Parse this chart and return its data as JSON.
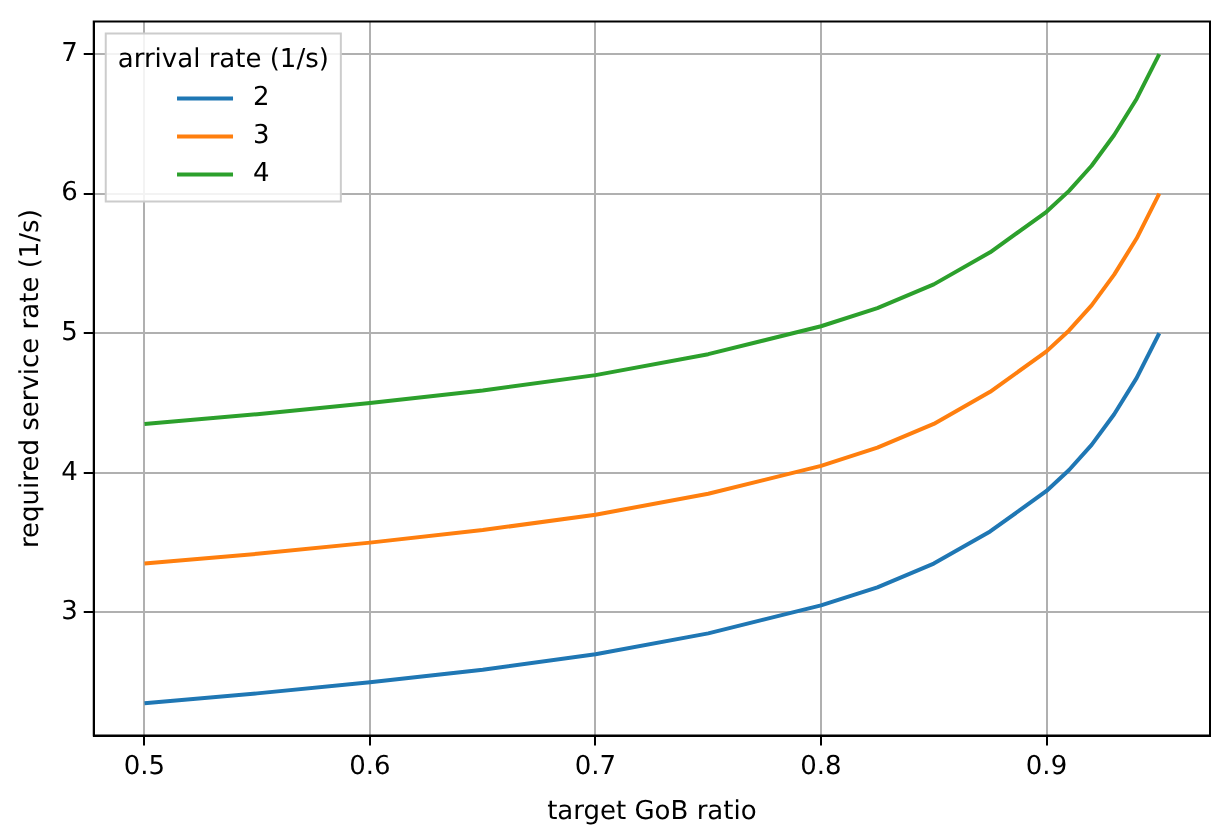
{
  "chart_data": {
    "type": "line",
    "xlabel": "target GoB ratio",
    "ylabel": "required service rate (1/s)",
    "legend_title": "arrival rate (1/s)",
    "legend": "top left",
    "grid": true,
    "marker": "none",
    "line_style": "solid",
    "x": [
      0.5,
      0.55,
      0.6,
      0.65,
      0.7,
      0.75,
      0.8,
      0.825,
      0.85,
      0.875,
      0.9,
      0.91,
      0.92,
      0.93,
      0.94,
      0.95
    ],
    "xlim": [
      0.4775,
      0.9725
    ],
    "xticks": [
      0.5,
      0.6,
      0.7,
      0.8,
      0.9
    ],
    "ylim": [
      2.1175,
      7.2325
    ],
    "yticks": [
      3,
      4,
      5,
      6,
      7
    ],
    "series": [
      {
        "name": "2",
        "color": "#1f77b4",
        "values": [
          2.35,
          2.42,
          2.5,
          2.59,
          2.7,
          2.85,
          3.05,
          3.18,
          3.35,
          3.58,
          3.87,
          4.02,
          4.2,
          4.42,
          4.68,
          5.0
        ]
      },
      {
        "name": "3",
        "color": "#ff7f0e",
        "values": [
          3.35,
          3.42,
          3.5,
          3.59,
          3.7,
          3.85,
          4.05,
          4.18,
          4.35,
          4.58,
          4.87,
          5.02,
          5.2,
          5.42,
          5.68,
          6.0
        ]
      },
      {
        "name": "4",
        "color": "#2ca02c",
        "values": [
          4.35,
          4.42,
          4.5,
          4.59,
          4.7,
          4.85,
          5.05,
          5.18,
          5.35,
          5.58,
          5.87,
          6.02,
          6.2,
          6.42,
          6.68,
          7.0
        ]
      }
    ]
  }
}
